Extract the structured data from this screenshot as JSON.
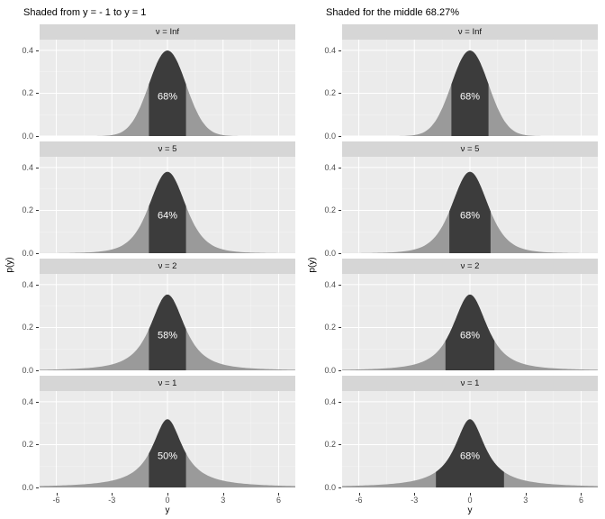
{
  "chart_data": [
    {
      "type": "area",
      "distribution": "student-t",
      "title": "Shaded from y = - 1 to y = 1",
      "xlabel": "y",
      "ylabel": "p(y)",
      "xlim": [
        -6.9,
        6.9
      ],
      "ylim": [
        0,
        0.45
      ],
      "x_ticks": [
        -6,
        -3,
        0,
        3,
        6
      ],
      "y_ticks": [
        0.4,
        0.2,
        0.0
      ],
      "facets": [
        {
          "strip": "ν = Inf",
          "nu": "Inf",
          "shade_from": -1,
          "shade_to": 1,
          "shade_label": "68%"
        },
        {
          "strip": "ν = 5",
          "nu": 5,
          "shade_from": -1,
          "shade_to": 1,
          "shade_label": "64%"
        },
        {
          "strip": "ν = 2",
          "nu": 2,
          "shade_from": -1,
          "shade_to": 1,
          "shade_label": "58%"
        },
        {
          "strip": "ν = 1",
          "nu": 1,
          "shade_from": -1,
          "shade_to": 1,
          "shade_label": "50%"
        }
      ]
    },
    {
      "type": "area",
      "distribution": "student-t",
      "title": "Shaded for the middle 68.27%",
      "xlabel": "y",
      "ylabel": "p(y)",
      "xlim": [
        -6.9,
        6.9
      ],
      "ylim": [
        0,
        0.45
      ],
      "x_ticks": [
        -6,
        -3,
        0,
        3,
        6
      ],
      "y_ticks": [
        0.4,
        0.2,
        0.0
      ],
      "facets": [
        {
          "strip": "ν = Inf",
          "nu": "Inf",
          "shade_from": -1,
          "shade_to": 1,
          "shade_label": "68%"
        },
        {
          "strip": "ν = 5",
          "nu": 5,
          "shade_from": -1.1105,
          "shade_to": 1.1105,
          "shade_label": "68%"
        },
        {
          "strip": "ν = 2",
          "nu": 2,
          "shade_from": -1.3213,
          "shade_to": 1.3213,
          "shade_label": "68%"
        },
        {
          "strip": "ν = 1",
          "nu": 1,
          "shade_from": -1.8373,
          "shade_to": 1.8373,
          "shade_label": "68%"
        }
      ]
    }
  ],
  "style": {
    "panel_bg": "#ebebeb",
    "strip_bg": "#d6d6d6",
    "curve_fill": "#9a9a9a",
    "shade_fill": "#3c3c3c",
    "shade_label_color": "#ffffff",
    "grid_major": "#ffffff",
    "grid_minor": "#ffffff",
    "axis_text": "#4d4d4d",
    "tick_color": "#333333"
  }
}
